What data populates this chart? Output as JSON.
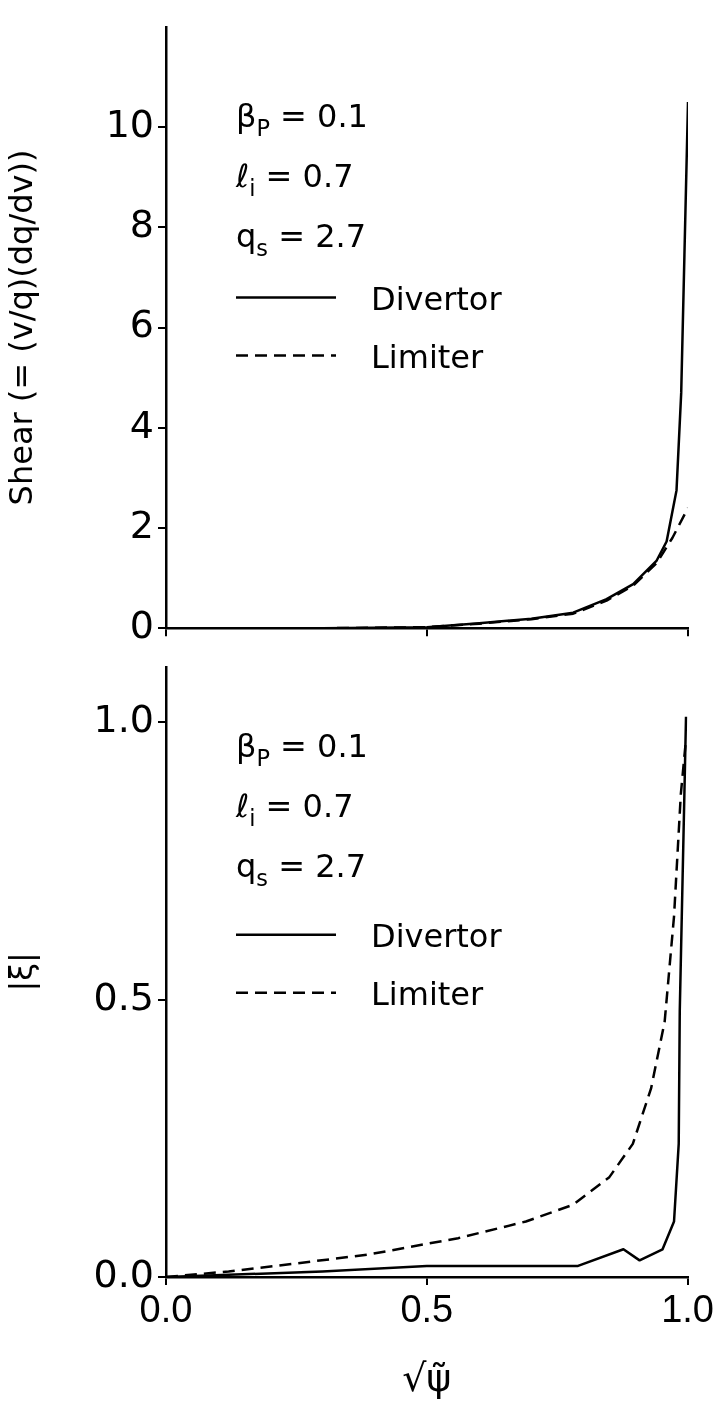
{
  "chart_data": [
    {
      "type": "line",
      "ylabel": "Shear (= (v/q)(dq/dv))",
      "annotations": [
        "β$_{P}$ = 0.1",
        "ℓ$_{i}$ = 0.7",
        "q$_{s}$ = 2.7"
      ],
      "legend": "left",
      "marker": "none",
      "grid": false,
      "tick_labels": "y",
      "xlim": [
        0,
        1
      ],
      "xticks": [
        {
          "value": 0,
          "label": null
        },
        {
          "value": 0.5,
          "label": null
        },
        {
          "value": 1,
          "label": null
        }
      ],
      "ylim": [
        0,
        12
      ],
      "yticks": [
        0,
        2,
        4,
        6,
        8,
        10
      ],
      "series": [
        {
          "name": "Divertor",
          "color": "#000000",
          "line_style": "solid",
          "x": [
            0,
            0.3,
            0.5,
            0.6,
            0.7,
            0.78,
            0.844,
            0.895,
            0.94,
            0.959,
            0.978,
            0.987,
            1.0
          ],
          "values": [
            0,
            0,
            0.02,
            0.1,
            0.19,
            0.31,
            0.58,
            0.88,
            1.35,
            1.73,
            2.75,
            4.7,
            10.5
          ]
        },
        {
          "name": "Limiter",
          "color": "#000000",
          "line_style": "dashed",
          "x": [
            0,
            0.3,
            0.5,
            0.6,
            0.7,
            0.78,
            0.844,
            0.895,
            0.94,
            0.97,
            1.0
          ],
          "values": [
            0,
            0,
            0.02,
            0.09,
            0.18,
            0.29,
            0.55,
            0.85,
            1.3,
            1.8,
            2.4
          ]
        }
      ]
    },
    {
      "type": "line",
      "xlabel": "√ψ̃",
      "ylabel": "|ξ|",
      "annotations": [
        "β$_{P}$ = 0.1",
        "ℓ$_{i}$ = 0.7",
        "q$_{s}$ = 2.7"
      ],
      "legend": "top left",
      "marker": "none",
      "grid": false,
      "xlim": [
        0,
        1
      ],
      "xticks": [
        {
          "value": 0,
          "label": "0.0"
        },
        {
          "value": 0.5,
          "label": "0.5"
        },
        {
          "value": 1,
          "label": "1.0"
        }
      ],
      "ylim": [
        0,
        1.1
      ],
      "yticks": [
        {
          "value": 0,
          "label": "0.0"
        },
        {
          "value": 0.5,
          "label": "0.5"
        },
        {
          "value": 1,
          "label": "1.0"
        }
      ],
      "series": [
        {
          "name": "Divertor",
          "color": "#000000",
          "line_style": "solid",
          "x": [
            0,
            0.3,
            0.5,
            0.69,
            0.79,
            0.877,
            0.908,
            0.952,
            0.974,
            0.983,
            0.985,
            0.997
          ],
          "values": [
            0,
            0.01,
            0.02,
            0.02,
            0.02,
            0.05,
            0.03,
            0.05,
            0.1,
            0.24,
            0.48,
            1.01
          ]
        },
        {
          "name": "Limiter",
          "color": "#000000",
          "line_style": "dashed",
          "x": [
            0,
            0.12,
            0.21,
            0.385,
            0.56,
            0.69,
            0.78,
            0.85,
            0.895,
            0.93,
            0.956,
            0.974,
            0.987,
            0.996
          ],
          "values": [
            0,
            0.01,
            0.02,
            0.04,
            0.07,
            0.1,
            0.13,
            0.18,
            0.24,
            0.34,
            0.46,
            0.65,
            0.87,
            0.96
          ]
        }
      ]
    }
  ]
}
